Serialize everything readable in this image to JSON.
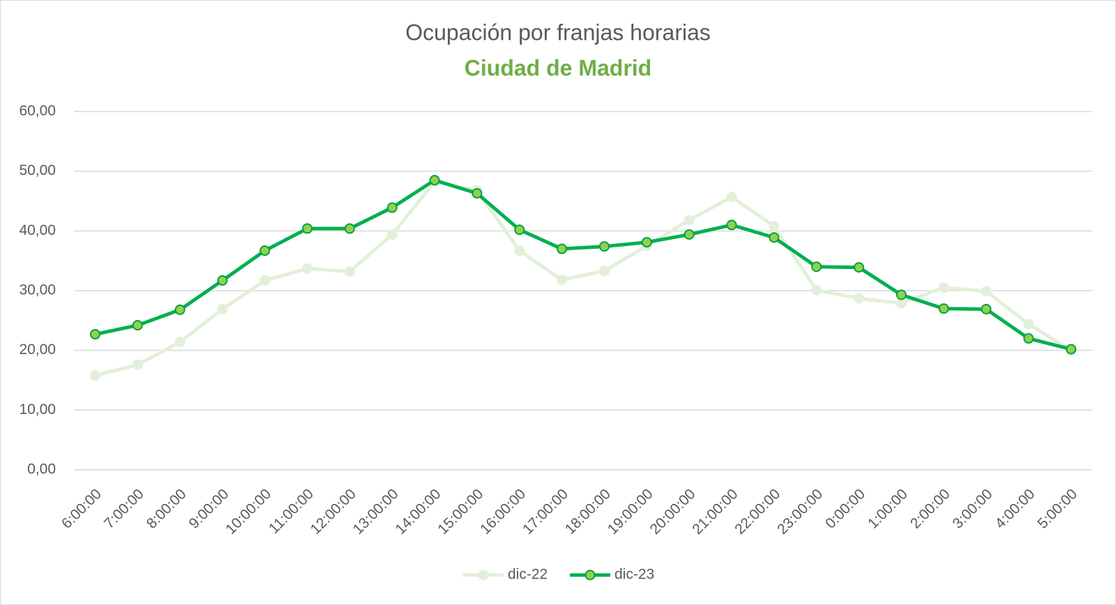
{
  "chart_data": {
    "type": "line",
    "title": "Ocupación por franjas horarias",
    "subtitle": "Ciudad de Madrid",
    "categories": [
      "6:00:00",
      "7:00:00",
      "8:00:00",
      "9:00:00",
      "10:00:00",
      "11:00:00",
      "12:00:00",
      "13:00:00",
      "14:00:00",
      "15:00:00",
      "16:00:00",
      "17:00:00",
      "18:00:00",
      "19:00:00",
      "20:00:00",
      "21:00:00",
      "22:00:00",
      "23:00:00",
      "0:00:00",
      "1:00:00",
      "2:00:00",
      "3:00:00",
      "4:00:00",
      "5:00:00"
    ],
    "series": [
      {
        "name": "dic-22",
        "color": "#e2f0d9",
        "values": [
          15.8,
          17.6,
          21.4,
          26.9,
          31.7,
          33.7,
          33.2,
          39.4,
          48.2,
          46.8,
          36.7,
          31.8,
          33.3,
          37.5,
          41.8,
          45.7,
          40.8,
          30.1,
          28.7,
          27.9,
          30.5,
          29.9,
          24.4,
          20.0
        ]
      },
      {
        "name": "dic-23",
        "color": "#00b050",
        "values": [
          22.7,
          24.2,
          26.8,
          31.7,
          36.7,
          40.4,
          40.4,
          43.9,
          48.5,
          46.3,
          40.2,
          37.0,
          37.4,
          38.1,
          39.4,
          41.0,
          38.9,
          34.0,
          33.9,
          29.3,
          27.0,
          26.9,
          22.0,
          20.2
        ]
      }
    ],
    "ylim": [
      0,
      60
    ],
    "yticks": [
      {
        "value": 0,
        "label": "0,00"
      },
      {
        "value": 10,
        "label": "10,00"
      },
      {
        "value": 20,
        "label": "20,00"
      },
      {
        "value": 30,
        "label": "30,00"
      },
      {
        "value": 40,
        "label": "40,00"
      },
      {
        "value": 50,
        "label": "50,00"
      },
      {
        "value": 60,
        "label": "60,00"
      }
    ],
    "grid": true,
    "legend": "bottom"
  }
}
